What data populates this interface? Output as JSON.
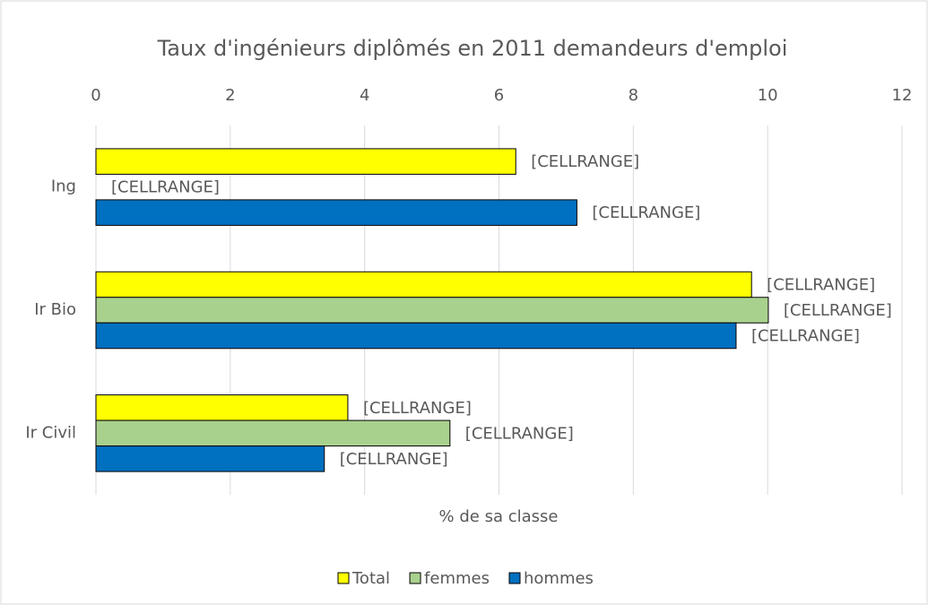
{
  "chart_data": {
    "type": "barh",
    "title": "Taux d'ingénieurs diplômés en 2011 demandeurs d'emploi",
    "xlabel": "% de sa classe",
    "categories": [
      "Ing",
      "Ir Bio",
      "Ir Civil"
    ],
    "series": [
      {
        "name": "Total",
        "color": "#ffff00",
        "values": [
          6.25,
          9.76,
          3.75
        ],
        "value_labels": [
          "[CELLRANGE]",
          "[CELLRANGE]",
          "[CELLRANGE]"
        ]
      },
      {
        "name": "femmes",
        "color": "#a9d18e",
        "values": [
          0,
          10.01,
          5.27
        ],
        "value_labels": [
          "[CELLRANGE]",
          "[CELLRANGE]",
          "[CELLRANGE]"
        ]
      },
      {
        "name": "hommes",
        "color": "#0070c0",
        "values": [
          7.16,
          9.53,
          3.4
        ],
        "value_labels": [
          "[CELLRANGE]",
          "[CELLRANGE]",
          "[CELLRANGE]"
        ]
      }
    ],
    "xlim": [
      0,
      12
    ],
    "xticks": [
      0,
      2,
      4,
      6,
      8,
      10,
      12
    ],
    "grid": true,
    "legend": "bottom"
  }
}
